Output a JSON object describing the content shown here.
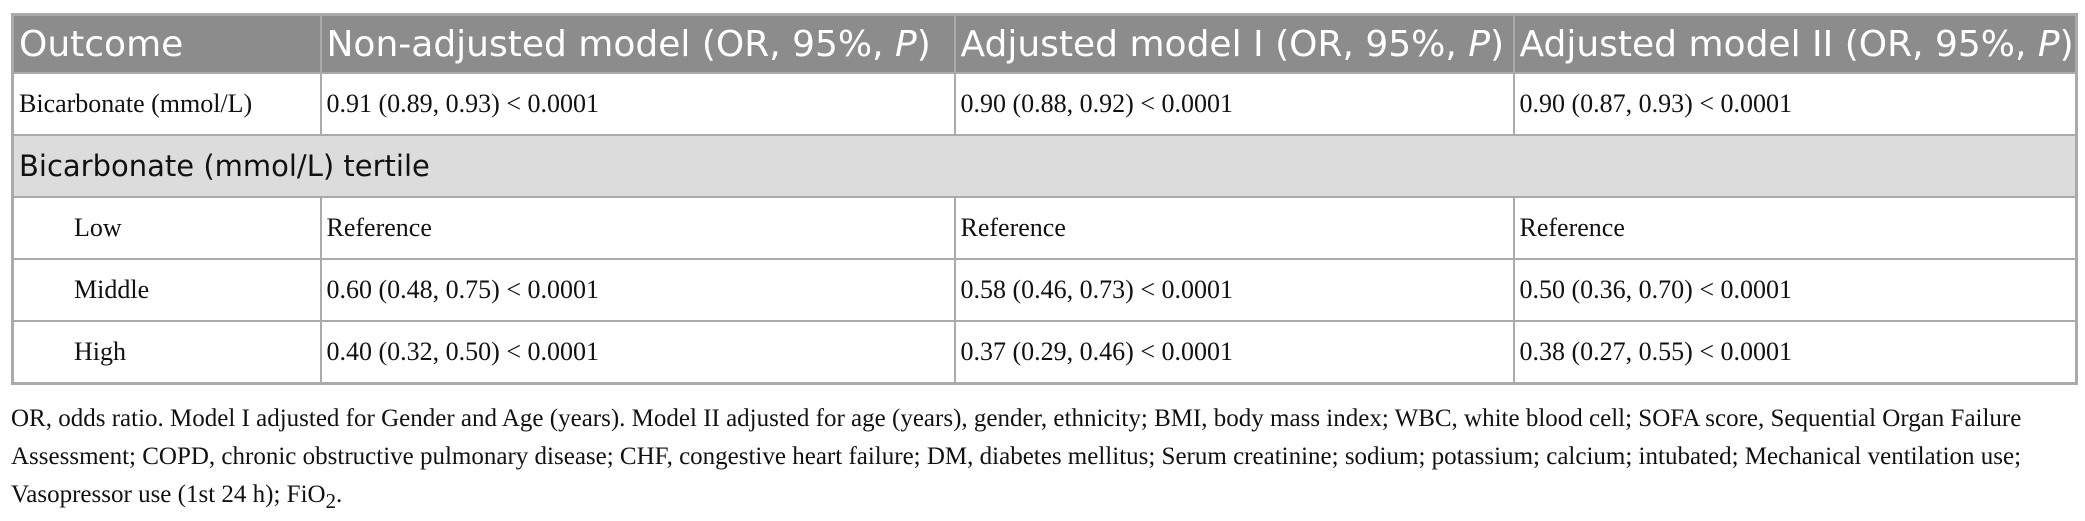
{
  "table": {
    "header": [
      {
        "text": "Outcome"
      },
      {
        "text": "Non-adjusted model (OR, 95%, ",
        "italic": "P",
        "end": ")"
      },
      {
        "text": "Adjusted model I (OR, 95%, ",
        "italic": "P",
        "end": ")"
      },
      {
        "text": "Adjusted model II (OR, 95%, ",
        "italic": "P",
        "end": ")"
      }
    ],
    "rows": [
      [
        "Bicarbonate (mmol/L)",
        "0.91 (0.89, 0.93) < 0.0001",
        "0.90 (0.88, 0.92) < 0.0001",
        "0.90 (0.87, 0.93) < 0.0001"
      ],
      [
        "Bicarbonate (mmol/L) tertile"
      ],
      [
        "Low",
        "Reference",
        "Reference",
        "Reference"
      ],
      [
        "Middle",
        "0.60 (0.48, 0.75) < 0.0001",
        "0.58 (0.46, 0.73) < 0.0001",
        "0.50 (0.36, 0.70) < 0.0001"
      ],
      [
        "High",
        "0.40 (0.32, 0.50) < 0.0001",
        "0.37 (0.29, 0.46) < 0.0001",
        "0.38 (0.27, 0.55) < 0.0001"
      ]
    ]
  },
  "footnote": [
    "OR, odds ratio. Model I adjusted for Gender and Age (years). Model II adjusted for age (years), gender, ethnicity; BMI, body mass index; WBC, white blood cell; SOFA score, Sequential Organ Failure Assessment; COPD, chronic obstructive pulmonary disease; CHF, congestive heart failure; DM, diabetes mellitus; Serum creatinine; sodium; potassium; calcium; intubated; Mechanical ventilation use; Vasopressor use (1st 24 h); FiO",
    "2",
    "."
  ]
}
